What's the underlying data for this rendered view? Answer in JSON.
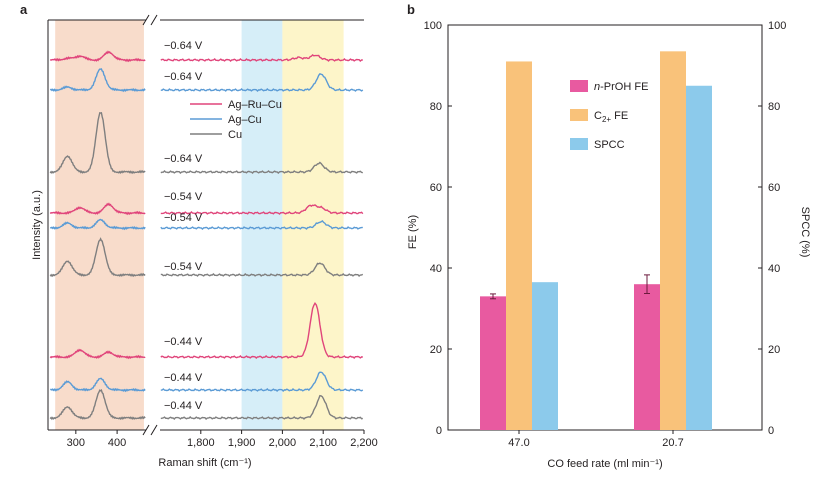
{
  "chart_data": [
    {
      "panel": "a",
      "type": "line",
      "xlabel": "Raman shift (cm⁻¹)",
      "ylabel": "Intensity (a.u.)",
      "x_segments": [
        {
          "range": [
            235,
            470
          ],
          "ticks": [
            "300",
            "400"
          ],
          "tick_values": [
            300,
            400
          ]
        },
        {
          "range": [
            1700,
            2200
          ],
          "ticks": [
            "1,800",
            "1,900",
            "2,000",
            "2,100",
            "2,200"
          ],
          "tick_values": [
            1800,
            1900,
            2000,
            2100,
            2200
          ]
        }
      ],
      "shaded_bands": [
        {
          "x": [
            250,
            465
          ],
          "color": "#f8dccb"
        },
        {
          "x": [
            1900,
            2000
          ],
          "color": "#d6eef8"
        },
        {
          "x": [
            2000,
            2150
          ],
          "color": "#fdf5c9"
        }
      ],
      "legend": [
        {
          "name": "Ag–Ru–Cu",
          "color": "#e0457b"
        },
        {
          "name": "Ag–Cu",
          "color": "#5b9bd5"
        },
        {
          "name": "Cu",
          "color": "#7f7f7f"
        }
      ],
      "series": [
        {
          "label": "−0.64 V",
          "catalyst": "Ag–Ru–Cu",
          "color": "#e0457b",
          "peaks": [
            {
              "x": 280,
              "h": 0.04
            },
            {
              "x": 310,
              "h": 0.1
            },
            {
              "x": 380,
              "h": 0.2
            },
            {
              "x": 2040,
              "h": 0.06
            },
            {
              "x": 2080,
              "h": 0.12
            }
          ]
        },
        {
          "label": "−0.64 V",
          "catalyst": "Ag–Cu",
          "color": "#5b9bd5",
          "peaks": [
            {
              "x": 280,
              "h": 0.07
            },
            {
              "x": 360,
              "h": 0.52
            },
            {
              "x": 2095,
              "h": 0.4
            }
          ]
        },
        {
          "label": "−0.64 V",
          "catalyst": "Cu",
          "color": "#7f7f7f",
          "peaks": [
            {
              "x": 280,
              "h": 0.4
            },
            {
              "x": 360,
              "h": 1.5
            },
            {
              "x": 2090,
              "h": 0.22
            }
          ]
        },
        {
          "label": "−0.54 V",
          "catalyst": "Ag–Ru–Cu",
          "color": "#e0457b",
          "peaks": [
            {
              "x": 310,
              "h": 0.14
            },
            {
              "x": 380,
              "h": 0.22
            },
            {
              "x": 2070,
              "h": 0.18
            },
            {
              "x": 2095,
              "h": 0.12
            }
          ]
        },
        {
          "label": "−0.54 V",
          "catalyst": "Ag–Cu",
          "color": "#5b9bd5",
          "peaks": [
            {
              "x": 280,
              "h": 0.12
            },
            {
              "x": 360,
              "h": 0.2
            },
            {
              "x": 2095,
              "h": 0.16
            }
          ]
        },
        {
          "label": "−0.54 V",
          "catalyst": "Cu",
          "color": "#7f7f7f",
          "peaks": [
            {
              "x": 280,
              "h": 0.35
            },
            {
              "x": 360,
              "h": 0.9
            },
            {
              "x": 2092,
              "h": 0.3
            }
          ]
        },
        {
          "label": "−0.44 V",
          "catalyst": "Ag–Ru–Cu",
          "color": "#e0457b",
          "peaks": [
            {
              "x": 310,
              "h": 0.18
            },
            {
              "x": 380,
              "h": 0.12
            },
            {
              "x": 2080,
              "h": 1.35
            }
          ]
        },
        {
          "label": "−0.44 V",
          "catalyst": "Ag–Cu",
          "color": "#5b9bd5",
          "peaks": [
            {
              "x": 280,
              "h": 0.2
            },
            {
              "x": 360,
              "h": 0.28
            },
            {
              "x": 2095,
              "h": 0.45
            }
          ]
        },
        {
          "label": "−0.44 V",
          "catalyst": "Cu",
          "color": "#7f7f7f",
          "peaks": [
            {
              "x": 280,
              "h": 0.28
            },
            {
              "x": 360,
              "h": 0.7
            },
            {
              "x": 2095,
              "h": 0.55
            }
          ]
        }
      ]
    },
    {
      "panel": "b",
      "type": "bar",
      "xlabel": "CO feed rate (ml min⁻¹)",
      "ylabel_left": "FE (%)",
      "ylabel_right": "SPCC (%)",
      "ylim": [
        0,
        100
      ],
      "yticks": [
        0,
        20,
        40,
        60,
        80,
        100
      ],
      "categories": [
        "47.0",
        "20.7"
      ],
      "series": [
        {
          "name_italic": "n",
          "name_rest": "-PrOH FE",
          "name": "n-PrOH FE",
          "color": "#e85aa0",
          "values": [
            33,
            36
          ],
          "errors": [
            0.6,
            2.3
          ],
          "axis": "left"
        },
        {
          "name_main": "C",
          "name_sub": "2+",
          "name_rest": " FE",
          "name": "C2+ FE",
          "color": "#f9c27a",
          "values": [
            91,
            93.5
          ],
          "axis": "left"
        },
        {
          "name": "SPCC",
          "color": "#8ccaeb",
          "values": [
            36.5,
            85
          ],
          "axis": "right"
        }
      ],
      "right_axis_color": "#5b9bd5"
    }
  ]
}
